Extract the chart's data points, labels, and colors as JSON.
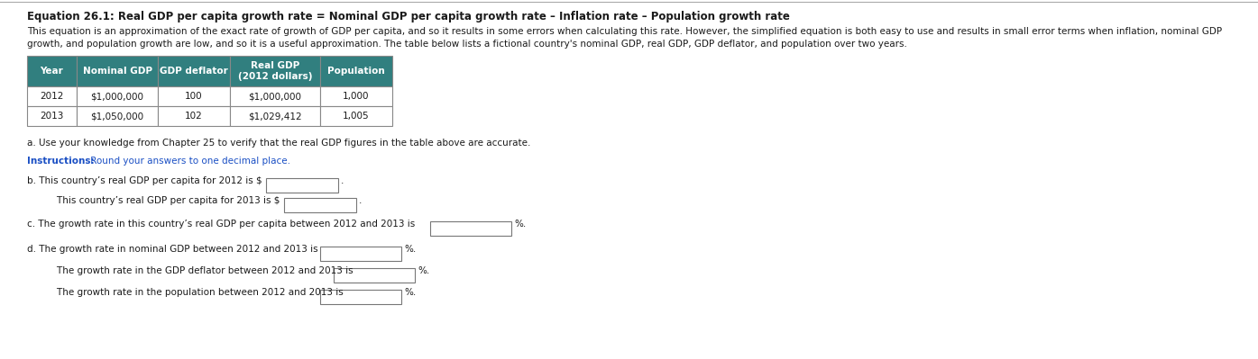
{
  "title": "Equation 26.1: Real GDP per capita growth rate = Nominal GDP per capita growth rate – Inflation rate – Population growth rate",
  "paragraph1": "This equation is an approximation of the exact rate of growth of GDP per capita, and so it results in some errors when calculating this rate. However, the simplified equation is both easy to use and results in small error terms when inflation, nominal GDP",
  "paragraph2": "growth, and population growth are low, and so it is a useful approximation. The table below lists a fictional country's nominal GDP, real GDP, GDP deflator, and population over two years.",
  "table_headers": [
    "Year",
    "Nominal GDP",
    "GDP deflator",
    "Real GDP\n(2012 dollars)",
    "Population"
  ],
  "table_data": [
    [
      "2012",
      "$1,000,000",
      "100",
      "$1,000,000",
      "1,000"
    ],
    [
      "2013",
      "$1,050,000",
      "102",
      "$1,029,412",
      "1,005"
    ]
  ],
  "header_bg": "#317f7f",
  "header_text": "#ffffff",
  "row_bg": "#ffffff",
  "border_color": "#888888",
  "question_a": "a. Use your knowledge from Chapter 25 to verify that the real GDP figures in the table above are accurate.",
  "question_b1_pre": "b. This country’s real GDP per capita for 2012 is $",
  "question_b2_pre": "    This country’s real GDP per capita for 2013 is $",
  "question_c_pre": "c. The growth rate in this country’s real GDP per capita between 2012 and 2013 is",
  "question_d1_pre": "d. The growth rate in nominal GDP between 2012 and 2013 is",
  "question_d2_pre": "    The growth rate in the GDP deflator between 2012 and 2013 is",
  "question_d3_pre": "    The growth rate in the population between 2012 and 2013 is",
  "bg_color": "#ffffff",
  "text_color": "#1a1a1a",
  "blue_text_color": "#1a4fc4",
  "instructions_bold": "Instructions:",
  "instructions_rest": " Round your answers to one decimal place.",
  "border_color_top": "#aaaaaa"
}
